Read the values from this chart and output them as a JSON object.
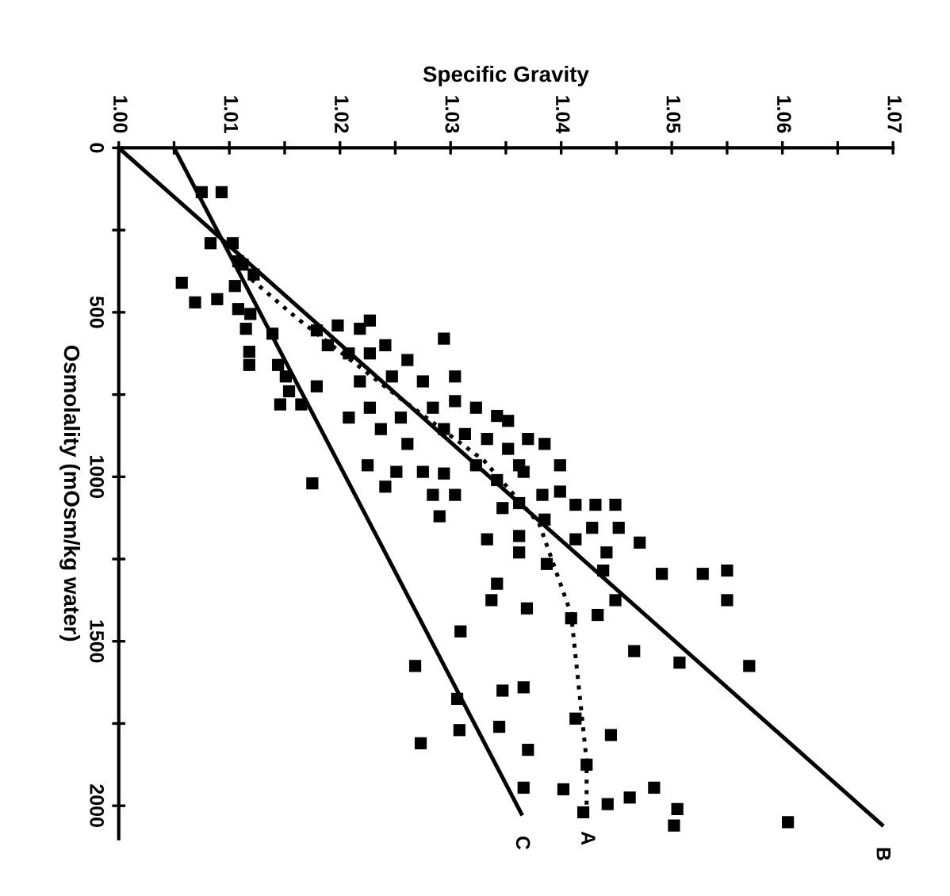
{
  "chart_data": {
    "type": "scatter",
    "xlabel": "Specific Gravity",
    "ylabel": "Osmolality (mOsm/kg water)",
    "xlim": [
      1.0,
      1.07
    ],
    "ylim": [
      2100,
      0
    ],
    "xticks": [
      {
        "value": 1.0,
        "label": "1.00"
      },
      {
        "value": 1.005,
        "label": null
      },
      {
        "value": 1.01,
        "label": "1.01"
      },
      {
        "value": 1.015,
        "label": null
      },
      {
        "value": 1.02,
        "label": "1.02"
      },
      {
        "value": 1.025,
        "label": null
      },
      {
        "value": 1.03,
        "label": "1.03"
      },
      {
        "value": 1.035,
        "label": null
      },
      {
        "value": 1.04,
        "label": "1.04"
      },
      {
        "value": 1.045,
        "label": null
      },
      {
        "value": 1.05,
        "label": "1.05"
      },
      {
        "value": 1.055,
        "label": null
      },
      {
        "value": 1.06,
        "label": "1.06"
      },
      {
        "value": 1.065,
        "label": null
      },
      {
        "value": 1.07,
        "label": "1.07"
      }
    ],
    "yticks": [
      0,
      {
        "value": 250,
        "label": null
      },
      500,
      {
        "value": 750,
        "label": null
      },
      1000,
      {
        "value": 1250,
        "label": null
      },
      1500,
      {
        "value": 1750,
        "label": null
      },
      2000
    ],
    "grid": false,
    "legend": false,
    "series": [
      {
        "color": "#000000",
        "marker": "square",
        "x": [
          1.0075,
          1.0093,
          1.0083,
          1.0103,
          1.0057,
          1.0069,
          1.0089,
          1.0105,
          1.0112,
          1.0122,
          1.0108,
          1.0108,
          1.0115,
          1.0118,
          1.0118,
          1.0119,
          1.0139,
          1.0144,
          1.0151,
          1.0154,
          1.0146,
          1.0165,
          1.0179,
          1.0179,
          1.0189,
          1.0198,
          1.0218,
          1.0227,
          1.0208,
          1.0227,
          1.0241,
          1.0261,
          1.0247,
          1.0218,
          1.0227,
          1.0208,
          1.0237,
          1.0255,
          1.0275,
          1.0294,
          1.0304,
          1.0284,
          1.0304,
          1.0323,
          1.0342,
          1.0261,
          1.0294,
          1.0313,
          1.0333,
          1.0352,
          1.0323,
          1.0342,
          1.0225,
          1.0251,
          1.0275,
          1.0294,
          1.0241,
          1.0284,
          1.0304,
          1.0175,
          1.029,
          1.0362,
          1.0366,
          1.037,
          1.0333,
          1.0362,
          1.0362,
          1.0342,
          1.0337,
          1.0369,
          1.0309,
          1.0385,
          1.0399,
          1.0383,
          1.0399,
          1.0413,
          1.0431,
          1.0449,
          1.0385,
          1.0413,
          1.0441,
          1.0452,
          1.0438,
          1.0387,
          1.0409,
          1.0433,
          1.0449,
          1.0352,
          1.0362,
          1.0347,
          1.0428,
          1.0471,
          1.0491,
          1.0528,
          1.055,
          1.055,
          1.0466,
          1.0507,
          1.057,
          1.0347,
          1.0366,
          1.0344,
          1.037,
          1.0413,
          1.0445,
          1.0423,
          1.0366,
          1.0402,
          1.042,
          1.0442,
          1.0462,
          1.0484,
          1.0505,
          1.0502,
          1.0605,
          1.0268,
          1.0306,
          1.0308,
          1.0273
        ],
        "values": [
          135,
          135,
          290,
          290,
          410,
          470,
          460,
          420,
          355,
          385,
          345,
          490,
          550,
          620,
          660,
          505,
          565,
          660,
          695,
          740,
          780,
          780,
          725,
          555,
          600,
          540,
          550,
          525,
          625,
          625,
          600,
          645,
          695,
          710,
          790,
          820,
          855,
          820,
          710,
          580,
          695,
          790,
          770,
          790,
          815,
          900,
          855,
          870,
          885,
          915,
          965,
          1010,
          965,
          985,
          985,
          990,
          1030,
          1055,
          1055,
          1020,
          1120,
          1080,
          985,
          885,
          1190,
          1180,
          1230,
          1325,
          1375,
          1400,
          1470,
          900,
          965,
          1055,
          1045,
          1085,
          1085,
          1085,
          1130,
          1190,
          1230,
          1155,
          1285,
          1265,
          1430,
          1420,
          1375,
          830,
          965,
          1095,
          1155,
          1200,
          1295,
          1295,
          1285,
          1375,
          1530,
          1565,
          1575,
          1650,
          1640,
          1760,
          1830,
          1735,
          1785,
          1875,
          1945,
          1950,
          2020,
          1995,
          1975,
          1945,
          2010,
          2060,
          2050,
          1575,
          1675,
          1770,
          1810
        ]
      },
      {
        "type": "line",
        "name": "A",
        "color": "#000000",
        "line_style": "dotted",
        "x": [
          1.012,
          1.016,
          1.025,
          1.033,
          1.038,
          1.0409,
          1.0423,
          1.0423
        ],
        "values": [
          400,
          515,
          750,
          950,
          1142,
          1417,
          1865,
          2010
        ]
      },
      {
        "type": "line",
        "name": "B",
        "color": "#000000",
        "line_style": "solid",
        "x": [
          1.0,
          1.069
        ],
        "values": [
          0,
          2058
        ]
      },
      {
        "type": "line",
        "name": "C",
        "color": "#000000",
        "line_style": "solid",
        "x": [
          1.005,
          1.0364
        ],
        "values": [
          0,
          2024
        ]
      }
    ]
  }
}
